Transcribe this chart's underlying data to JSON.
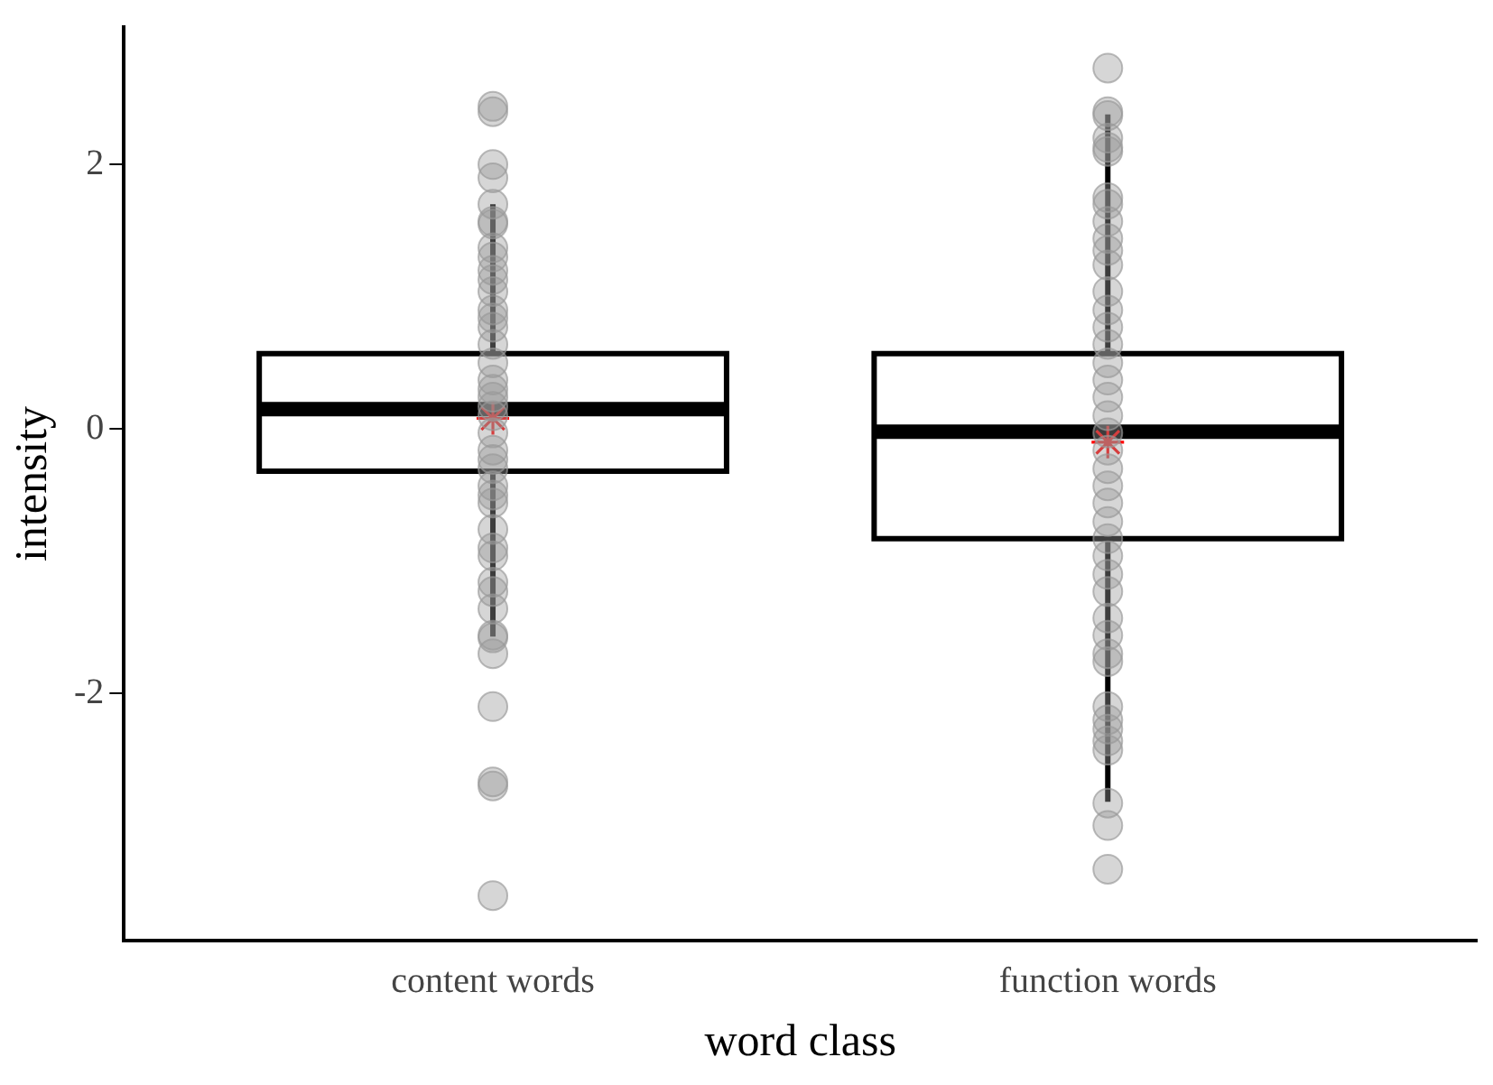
{
  "chart_data": {
    "type": "box",
    "xlabel": "word class",
    "ylabel": "intensity",
    "categories": [
      "content words",
      "function words"
    ],
    "ylim": [
      -3.87,
      3.04
    ],
    "yticks": [
      -2,
      0,
      2
    ],
    "grid": false,
    "legend": false,
    "boxes": [
      {
        "low": -1.57,
        "q1": -0.32,
        "median": 0.15,
        "q3": 0.57,
        "high": 1.7,
        "mean": 0.08
      },
      {
        "low": -2.82,
        "q1": -0.83,
        "median": -0.02,
        "q3": 0.57,
        "high": 2.38,
        "mean": -0.1
      }
    ],
    "series": [
      {
        "type": "scatter",
        "color": "#999999",
        "marker": "circle",
        "x": [
          "content words",
          "content words",
          "content words",
          "content words",
          "content words",
          "content words",
          "content words",
          "content words",
          "content words",
          "content words",
          "content words",
          "content words",
          "content words",
          "content words",
          "content words",
          "content words",
          "content words",
          "content words",
          "content words",
          "content words",
          "content words",
          "content words",
          "content words",
          "content words",
          "content words",
          "content words",
          "content words",
          "content words",
          "content words",
          "content words",
          "content words",
          "content words",
          "content words",
          "content words",
          "content words",
          "content words",
          "content words",
          "content words",
          "content words",
          "content words",
          "content words",
          "content words",
          "function words",
          "function words",
          "function words",
          "function words",
          "function words",
          "function words",
          "function words",
          "function words",
          "function words",
          "function words",
          "function words",
          "function words",
          "function words",
          "function words",
          "function words",
          "function words",
          "function words",
          "function words",
          "function words",
          "function words",
          "function words",
          "function words",
          "function words",
          "function words",
          "function words",
          "function words",
          "function words",
          "function words",
          "function words",
          "function words",
          "function words",
          "function words",
          "function words",
          "function words",
          "function words",
          "function words",
          "function words",
          "function words",
          "function words",
          "function words",
          "function words",
          "function words"
        ],
        "values": [
          2.44,
          1.57,
          1.9,
          1.55,
          1.3,
          2.0,
          1.7,
          2.4,
          1.04,
          0.9,
          0.77,
          0.64,
          0.5,
          0.37,
          0.24,
          0.17,
          0.1,
          -0.03,
          -0.16,
          -0.3,
          -0.43,
          -0.56,
          -0.76,
          -0.9,
          -1.16,
          -1.23,
          -1.36,
          -1.56,
          -1.7,
          -2.1,
          -2.7,
          -3.53,
          -1.58,
          -2.67,
          1.2,
          1.37,
          1.13,
          0.84,
          0.3,
          -0.23,
          -0.5,
          -0.96,
          2.73,
          2.4,
          2.37,
          2.13,
          2.2,
          2.1,
          1.75,
          1.7,
          1.57,
          1.44,
          1.35,
          1.24,
          1.04,
          0.9,
          0.77,
          0.64,
          0.5,
          0.37,
          0.24,
          0.1,
          -0.03,
          -0.16,
          -0.3,
          -0.43,
          -0.56,
          -0.7,
          -0.83,
          -0.96,
          -1.1,
          -1.23,
          -1.43,
          -1.56,
          -1.76,
          -2.1,
          -2.27,
          -2.36,
          -2.43,
          -2.83,
          -3.0,
          -3.33,
          -2.2,
          -1.7
        ]
      }
    ]
  }
}
